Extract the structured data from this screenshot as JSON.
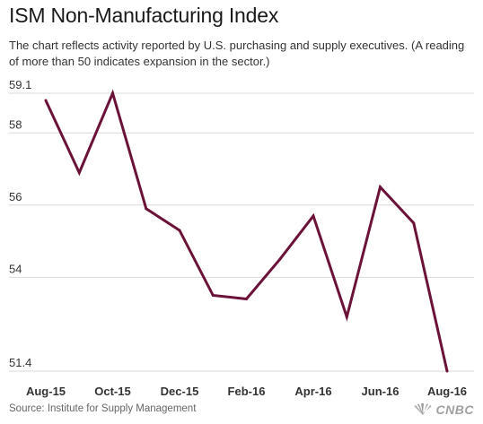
{
  "header": {
    "title": "ISM Non-Manufacturing Index",
    "subtitle": "The chart reflects activity reported by U.S. purchasing and supply executives. (A reading of more than 50 indicates expansion in the sector.)"
  },
  "footer": {
    "source": "Source: Institute for Supply Management",
    "logo_text": "CNBC"
  },
  "colors": {
    "line": "#6b1238",
    "grid": "#d9d9d9",
    "tick_text": "#333333"
  },
  "chart_data": {
    "type": "line",
    "title": "ISM Non-Manufacturing Index",
    "x": [
      "Aug-15",
      "Sep-15",
      "Oct-15",
      "Nov-15",
      "Dec-15",
      "Jan-16",
      "Feb-16",
      "Mar-16",
      "Apr-16",
      "May-16",
      "Jun-16",
      "Jul-16",
      "Aug-16"
    ],
    "x_tick_labels": [
      "Aug-15",
      "Oct-15",
      "Dec-15",
      "Feb-16",
      "Apr-16",
      "Jun-16",
      "Aug-16"
    ],
    "series": [
      {
        "values": [
          58.9,
          56.9,
          59.1,
          55.9,
          55.3,
          53.5,
          53.4,
          54.5,
          55.7,
          52.9,
          56.5,
          55.5,
          51.4
        ]
      }
    ],
    "y_ticks": [
      51.4,
      54,
      56,
      58,
      59.1
    ],
    "ylim": [
      51.4,
      59.1
    ],
    "grid": true,
    "legend": "none"
  }
}
